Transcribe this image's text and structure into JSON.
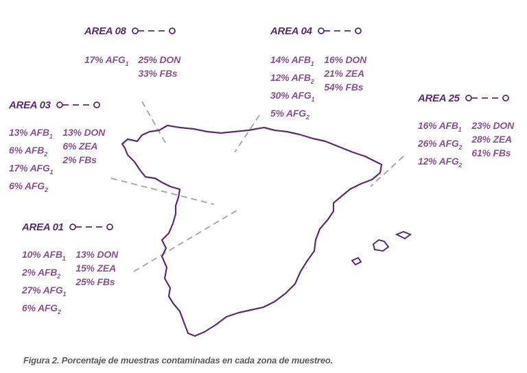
{
  "areas": {
    "a08": {
      "title": "AREA 08",
      "col1": [
        {
          "t": "17% AFG",
          "s": "1"
        }
      ],
      "col2": [
        {
          "t": "25% DON",
          "s": ""
        },
        {
          "t": "33% FBs",
          "s": ""
        }
      ]
    },
    "a04": {
      "title": "AREA 04",
      "col1": [
        {
          "t": "14% AFB",
          "s": "1"
        },
        {
          "t": "12% AFB",
          "s": "2"
        },
        {
          "t": "30% AFG",
          "s": "1"
        },
        {
          "t": "5% AFG",
          "s": "2"
        }
      ],
      "col2": [
        {
          "t": "16% DON",
          "s": ""
        },
        {
          "t": "21% ZEA",
          "s": ""
        },
        {
          "t": "54% FBs",
          "s": ""
        }
      ]
    },
    "a03": {
      "title": "AREA 03",
      "col1": [
        {
          "t": "13% AFB",
          "s": "1"
        },
        {
          "t": "6% AFB",
          "s": "2"
        },
        {
          "t": "17% AFG",
          "s": "1"
        },
        {
          "t": "6% AFG",
          "s": "2"
        }
      ],
      "col2": [
        {
          "t": "13% DON",
          "s": ""
        },
        {
          "t": "6% ZEA",
          "s": ""
        },
        {
          "t": "2% FBs",
          "s": ""
        }
      ]
    },
    "a25": {
      "title": "AREA 25",
      "col1": [
        {
          "t": "16% AFB",
          "s": "1"
        },
        {
          "t": "26% AFG",
          "s": "2"
        },
        {
          "t": "12% AFG",
          "s": "2"
        }
      ],
      "col2": [
        {
          "t": "23% DON",
          "s": ""
        },
        {
          "t": "28% ZEA",
          "s": ""
        },
        {
          "t": "61% FBs",
          "s": ""
        }
      ]
    },
    "a01": {
      "title": "AREA 01",
      "col1": [
        {
          "t": "10% AFB",
          "s": "1"
        },
        {
          "t": "2% AFB",
          "s": "2"
        },
        {
          "t": "27% AFG",
          "s": "1"
        },
        {
          "t": "6% AFG",
          "s": "2"
        }
      ],
      "col2": [
        {
          "t": "13% DON",
          "s": ""
        },
        {
          "t": "15% ZEA",
          "s": ""
        },
        {
          "t": "25% FBs",
          "s": ""
        }
      ]
    }
  },
  "caption": "Figura 2. Porcentaje de muestras contaminadas en cada zona de muestreo.",
  "colors": {
    "title": "#5b2a6e",
    "values": "#8b4f93",
    "outline": "#5e2a72",
    "leader": "#aaaaaa",
    "caption": "#5b5b5b"
  }
}
